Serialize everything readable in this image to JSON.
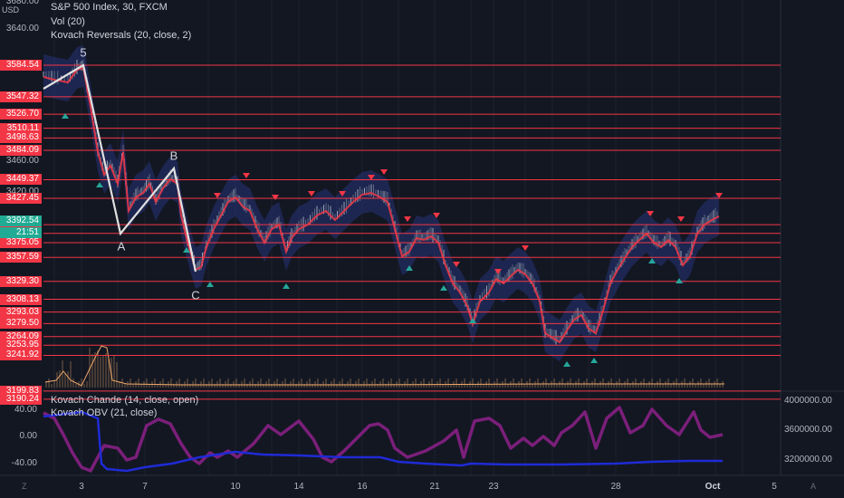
{
  "legend": {
    "symbol": "S&P 500 Index, 30, FXCM",
    "vol": "Vol (20)",
    "reversals": "Kovach Reversals (20, close, 2)",
    "chande": "Kovach Chande (14, close, open)",
    "obv": "Kovach OBV (21, close)"
  },
  "currency": "USD",
  "price_axis": {
    "top_values": [
      "3680.00",
      "3640.00"
    ],
    "gray_values": [
      "3460.00",
      "3420.00"
    ],
    "red_levels": [
      "3584.54",
      "3547.32",
      "3526.70",
      "3510.11",
      "3498.63",
      "3484.09",
      "3449.37",
      "3427.45",
      "3396.29",
      "3385.96",
      "3375.05",
      "3357.59",
      "3329.30",
      "3308.13",
      "3293.03",
      "3279.50",
      "3264.09",
      "3253.95",
      "3241.92",
      "3199.83",
      "3190.24"
    ],
    "last_price": "3392.54",
    "countdown": "21:51"
  },
  "lower_axis_left": [
    "40.00",
    "0.00",
    "-40.00"
  ],
  "lower_axis_right": [
    "4000000.00",
    "3600000.00",
    "3200000.00"
  ],
  "time_axis": [
    "3",
    "7",
    "10",
    "14",
    "16",
    "21",
    "23",
    "28",
    "Oct",
    "5"
  ],
  "wave_labels": [
    "5",
    "A",
    "B",
    "C"
  ],
  "corner_buttons": {
    "left": "Z",
    "right": "A"
  },
  "colors": {
    "background": "#131722",
    "level_line": "#f23645",
    "price_tag_green": "#22ab94",
    "wave_line": "#e0e0e0",
    "ma_line": "#f23645",
    "band": "#2a3a8a",
    "chande": "#7b1f7a",
    "obv": "#1f2bd6"
  },
  "chart_data": [
    {
      "type": "line",
      "title": "S&P 500 Index, 30, FXCM",
      "x": [
        "3",
        "7",
        "10",
        "14",
        "16",
        "21",
        "23",
        "28",
        "Oct",
        "5"
      ],
      "elliott_wave_points": [
        {
          "label": "5",
          "value": 3590
        },
        {
          "label": "A",
          "value": 3365
        },
        {
          "label": "B",
          "value": 3450
        },
        {
          "label": "C",
          "value": 3330
        }
      ],
      "horizontal_levels": [
        3584.54,
        3547.32,
        3526.7,
        3510.11,
        3498.63,
        3484.09,
        3449.37,
        3427.45,
        3396.29,
        3385.96,
        3375.05,
        3357.59,
        3329.3,
        3308.13,
        3293.03,
        3279.5,
        3264.09,
        3253.95,
        3241.92,
        3199.83,
        3190.24
      ],
      "last_price": 3392.54
    },
    {
      "type": "line",
      "series": [
        {
          "name": "Kovach Chande (14, close, open)",
          "axis": "left",
          "ylim": [
            -55,
            60
          ]
        },
        {
          "name": "Kovach OBV (21, close)",
          "axis": "right",
          "ylim": [
            3150000,
            4100000
          ]
        }
      ]
    }
  ]
}
